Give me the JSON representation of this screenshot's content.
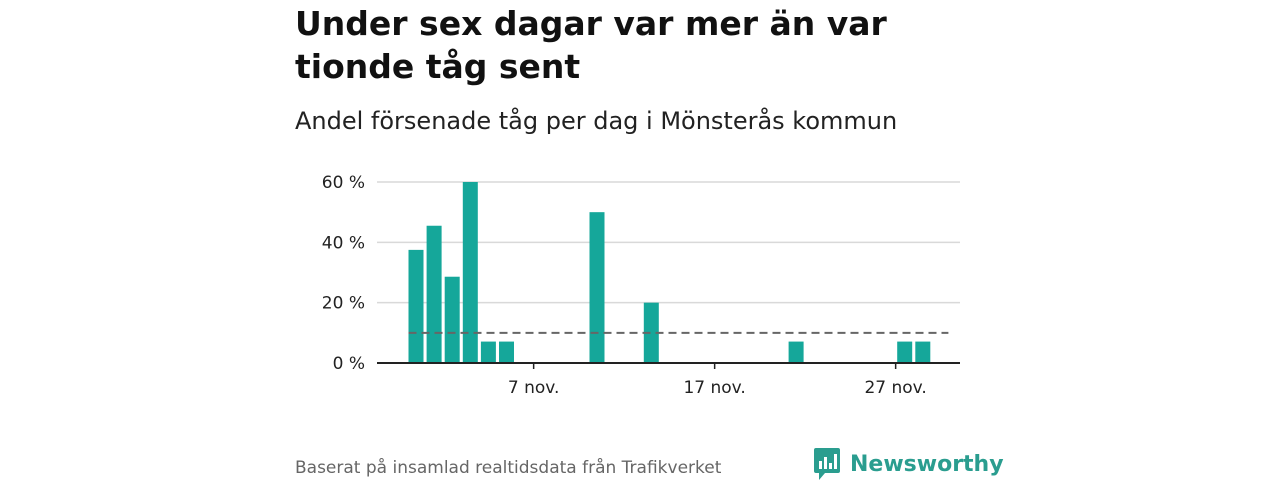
{
  "title": "Under sex dagar var mer än var tionde tåg sent",
  "subtitle": "Andel försenade tåg per dag i Mönsterås kommun",
  "footer": "Baserat på insamlad realtidsdata från Trafikverket",
  "brand": {
    "name": "Newsworthy",
    "icon": "newsworthy-logo-icon",
    "color": "#2a9d8f"
  },
  "chart_data": {
    "type": "bar",
    "x": [
      "2024-11-01",
      "2024-11-02",
      "2024-11-03",
      "2024-11-04",
      "2024-11-05",
      "2024-11-06",
      "2024-11-07",
      "2024-11-08",
      "2024-11-09",
      "2024-11-10",
      "2024-11-11",
      "2024-11-12",
      "2024-11-13",
      "2024-11-14",
      "2024-11-15",
      "2024-11-16",
      "2024-11-17",
      "2024-11-18",
      "2024-11-19",
      "2024-11-20",
      "2024-11-21",
      "2024-11-22",
      "2024-11-23",
      "2024-11-24",
      "2024-11-25",
      "2024-11-26",
      "2024-11-27",
      "2024-11-28",
      "2024-11-29",
      "2024-11-30"
    ],
    "values": [
      37.5,
      45.5,
      28.6,
      60,
      7.1,
      7.1,
      0,
      0,
      0,
      0,
      50,
      0,
      0,
      20,
      0,
      0,
      0,
      0,
      0,
      0,
      0,
      7.1,
      0,
      0,
      0,
      0,
      0,
      7.1,
      7.1,
      0
    ],
    "reference_line": 10,
    "ylim": [
      0,
      60
    ],
    "yticks": [
      "0 %",
      "20 %",
      "40 %",
      "60 %"
    ],
    "ytick_values": [
      0,
      20,
      40,
      60
    ],
    "xticks": [
      "7 nov.",
      "17 nov.",
      "27 nov."
    ],
    "xtick_dates": [
      "2024-11-07",
      "2024-11-17",
      "2024-11-27"
    ],
    "grid": true,
    "bar_color": "#15a79a",
    "reference_color": "#666666",
    "grid_color": "#d9d9d9",
    "axis_color": "#222222"
  }
}
